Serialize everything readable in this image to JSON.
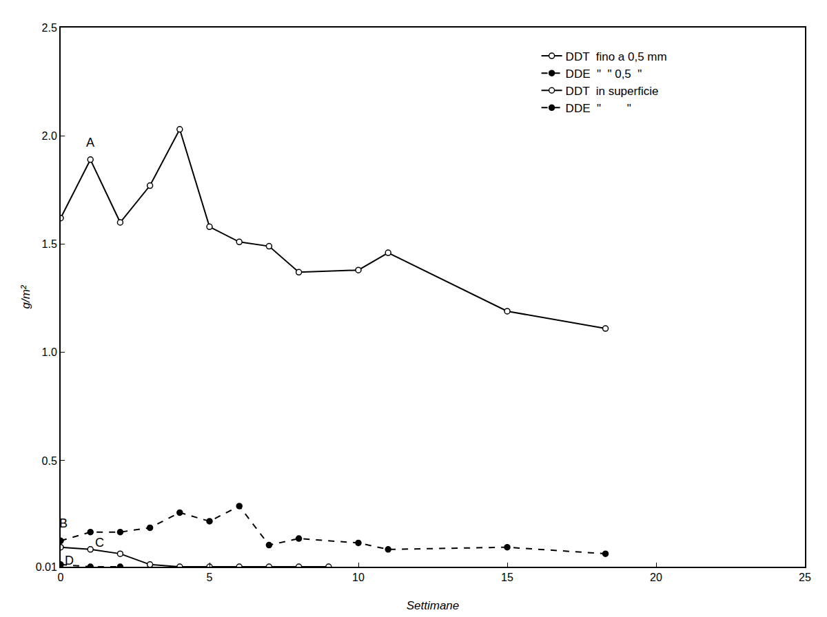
{
  "chart_data": {
    "type": "line",
    "x_label": "Settimane",
    "y_label": "g/m²",
    "xlim": [
      0,
      25
    ],
    "xticks": [
      0,
      5,
      10,
      15,
      20,
      25
    ],
    "ylim": [
      0.01,
      2.5
    ],
    "yticks": [
      0.01,
      0.5,
      {
        "value": 1,
        "label": "1.0"
      },
      1.5,
      {
        "value": 2,
        "label": "2.0"
      },
      2.5
    ],
    "grid": false,
    "legend": "top right",
    "series": [
      {
        "name": "DDT  fino a 0,5 mm",
        "color": "#000000",
        "marker": "circle-open",
        "line_style": "solid",
        "x": [
          0,
          1,
          2,
          3,
          4,
          5,
          6,
          7,
          8,
          10,
          11,
          15,
          18.3
        ],
        "values": [
          1.62,
          1.89,
          1.6,
          1.77,
          2.03,
          1.58,
          1.51,
          1.49,
          1.37,
          1.38,
          1.46,
          1.19,
          1.11
        ]
      },
      {
        "name": "DDE  \"  \" 0,5  \"",
        "color": "#000000",
        "marker": "circle",
        "line_style": "dash",
        "x": [
          0,
          1,
          2,
          3,
          4,
          5,
          6,
          7,
          8,
          10,
          11,
          15,
          18.3
        ],
        "values": [
          0.13,
          0.17,
          0.17,
          0.19,
          0.26,
          0.22,
          0.29,
          0.11,
          0.14,
          0.12,
          0.09,
          0.1,
          0.07
        ]
      },
      {
        "name": "DDT  in superficie",
        "color": "#000000",
        "marker": "circle-open",
        "line_style": "solid",
        "x": [
          0,
          1,
          2,
          3,
          4,
          5,
          6,
          7,
          8,
          9
        ],
        "values": [
          0.1,
          0.09,
          0.07,
          0.02,
          0.01,
          0.01,
          0.01,
          0.01,
          0.01,
          0.01
        ]
      },
      {
        "name": "DDE  \"        \"",
        "color": "#000000",
        "marker": "circle",
        "line_style": "dash",
        "x": [
          0,
          1,
          2
        ],
        "values": [
          0.02,
          0.01,
          0.01
        ]
      }
    ],
    "annotations": [
      {
        "text": "A",
        "x": 1,
        "y": 1.97
      },
      {
        "text": "B",
        "x": 0.1,
        "y": 0.21
      },
      {
        "text": "C",
        "x": 1.3,
        "y": 0.12
      },
      {
        "text": "D",
        "x": 0.3,
        "y": 0.04
      }
    ]
  }
}
